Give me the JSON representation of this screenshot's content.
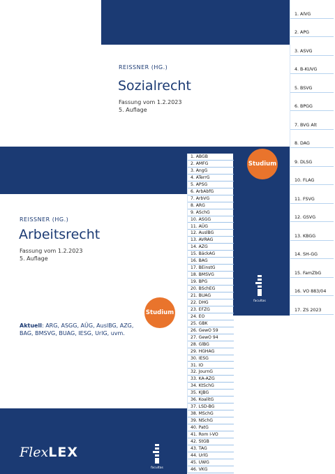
{
  "back_book": {
    "publisher": "REISSNER (HG.)",
    "title": "Sozialrecht",
    "edition_line1": "Fassung vom 1.2.2023",
    "edition_line2": "5. Auflage",
    "badge": "Studium",
    "brand": "facultas",
    "tabs": [
      "1. AlVG",
      "2. APG",
      "3. ASVG",
      "4. B-KUVG",
      "5. BSVG",
      "6. BPGG",
      "7. BVG Alt",
      "8. DAG",
      "9. DLSG",
      "10. FLAG",
      "11. FSVG",
      "12. GSVG",
      "13. KBGG",
      "14. SH-GG",
      "15. FamZbG",
      "16. VO 883/04",
      "17. ZS 2023"
    ]
  },
  "front_book": {
    "publisher": "REISSNER (HG.)",
    "title": "Arbeitsrecht",
    "edition_line1": "Fassung vom 1.2.2023",
    "edition_line2": "5. Auflage",
    "badge": "Studium",
    "current_label": "Aktuell",
    "current_text": ": ARG, ASGG, AÜG, AuslBG, AZG, BAG, BMSVG, BUAG, IESG, UrlG, uvm.",
    "series_lite": "Flex",
    "series_bold": "LEX",
    "brand": "facultas",
    "tabs": [
      "1. ABGB",
      "2. AMFG",
      "3. AngG",
      "4. ATerrG",
      "5. APSG",
      "6. ArbAbfG",
      "7. ArbVG",
      "8. ARG",
      "9. ASchG",
      "10. ASGG",
      "11. AÜG",
      "12. AuslBG",
      "13. AVRAG",
      "14. AZG",
      "15. BäckAG",
      "16. BAG",
      "17. BEinstG",
      "18. BMSVG",
      "19. BPG",
      "20. BSchEG",
      "21. BUAG",
      "22. DHG",
      "23. EFZG",
      "24. EO",
      "25. GBK",
      "26. GewO 59",
      "27. GewO 94",
      "28. GlBG",
      "29. HGHAG",
      "30. IESG",
      "31. IO",
      "32. JournG",
      "33. KA-AZG",
      "34. KtSchG",
      "35. KJBG",
      "36. KoalitG",
      "37. LSD-BG",
      "38. MSchG",
      "39. NSchG",
      "40. PatG",
      "41. Rom I-VO",
      "42. StGB",
      "43. TAG",
      "44. UrlG",
      "45. UWG",
      "46. VKG"
    ]
  }
}
